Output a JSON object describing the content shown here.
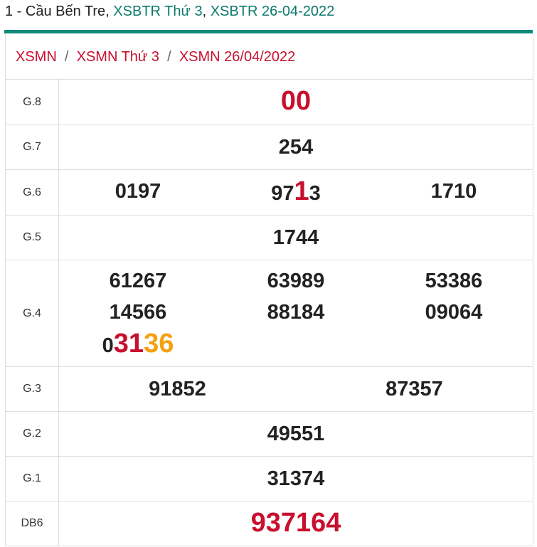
{
  "header": {
    "title": [
      "1 - Cầu Bến Tre, ",
      "XSBTR Thứ 3",
      ", ",
      "XSBTR 26-04-2022"
    ]
  },
  "breadcrumb": {
    "items": [
      "XSMN",
      "XSMN Thứ 3",
      "XSMN 26/04/2022"
    ],
    "separator": "/"
  },
  "table": {
    "rows": [
      {
        "label": "G.8",
        "numbers": [
          [
            {
              "text": "00",
              "color": "#c8102e"
            }
          ]
        ]
      },
      {
        "label": "G.7",
        "numbers": [
          [
            {
              "text": "254"
            }
          ]
        ]
      },
      {
        "label": "G.6",
        "numbers": [
          [
            {
              "text": "0197"
            }
          ],
          [
            {
              "text": "97"
            },
            {
              "text": "1",
              "color": "#c8102e"
            },
            {
              "text": "3"
            }
          ],
          [
            {
              "text": "1710"
            }
          ]
        ]
      },
      {
        "label": "G.5",
        "numbers": [
          [
            {
              "text": "1744"
            }
          ]
        ]
      },
      {
        "label": "G.4",
        "numbers": [
          [
            {
              "text": "61267"
            }
          ],
          [
            {
              "text": "63989"
            }
          ],
          [
            {
              "text": "53386"
            }
          ],
          [
            {
              "text": "14566"
            }
          ],
          [
            {
              "text": "88184"
            }
          ],
          [
            {
              "text": "09064"
            }
          ],
          [
            {
              "text": "0"
            },
            {
              "text": "31",
              "color": "#c8102e"
            },
            {
              "text": "36",
              "color": "#f5a011"
            }
          ]
        ]
      },
      {
        "label": "G.3",
        "numbers": [
          [
            {
              "text": "91852"
            }
          ],
          [
            {
              "text": "87357"
            }
          ]
        ]
      },
      {
        "label": "G.2",
        "numbers": [
          [
            {
              "text": "49551"
            }
          ]
        ]
      },
      {
        "label": "G.1",
        "numbers": [
          [
            {
              "text": "31374"
            }
          ]
        ]
      },
      {
        "label": "DB6",
        "numbers": [
          [
            {
              "text": "937164",
              "color": "#c8102e"
            }
          ]
        ]
      }
    ]
  }
}
